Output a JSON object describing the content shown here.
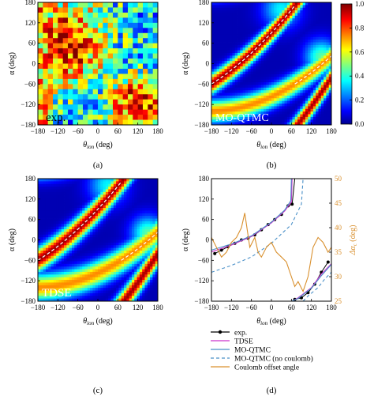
{
  "chart_data": [
    {
      "panel": "a",
      "type": "heatmap",
      "caption": "(a)",
      "label": "exp.",
      "xlabel_main": "θ",
      "xlabel_sub": "ion",
      "xlabel_unit": "(deg)",
      "ylabel": "α (deg)",
      "xlim": [
        -180,
        180
      ],
      "ylim": [
        -180,
        180
      ],
      "xticks": [
        "−180",
        "−120",
        "−60",
        "0",
        "60",
        "120",
        "180"
      ],
      "yticks": [
        "−180",
        "−120",
        "−60",
        "0",
        "60",
        "120",
        "180"
      ],
      "description": "noisy experimental map: high values upper-left and lower-right, low values along center"
    },
    {
      "panel": "b",
      "type": "heatmap",
      "caption": "(b)",
      "label": "MO-QTMC",
      "xlabel_main": "θ",
      "xlabel_sub": "ion",
      "xlabel_unit": "(deg)",
      "ylabel": "α (deg)",
      "xlim": [
        -180,
        180
      ],
      "ylim": [
        -180,
        180
      ],
      "xticks": [
        "−180",
        "−120",
        "−60",
        "0",
        "60",
        "120",
        "180"
      ],
      "yticks": [
        "−180",
        "−120",
        "−60",
        "0",
        "60",
        "120",
        "180"
      ],
      "colorbar": {
        "min": 0.0,
        "max": 1.0,
        "ticks": [
          "0.0",
          "0.2",
          "0.4",
          "0.6",
          "0.8",
          "1.0"
        ]
      }
    },
    {
      "panel": "c",
      "type": "heatmap",
      "caption": "(c)",
      "label": "TDSE",
      "xlabel_main": "θ",
      "xlabel_sub": "ion",
      "xlabel_unit": "(deg)",
      "ylabel": "α (deg)",
      "xlim": [
        -180,
        180
      ],
      "ylim": [
        -180,
        180
      ],
      "xticks": [
        "−180",
        "−120",
        "−60",
        "0",
        "60",
        "120",
        "180"
      ],
      "yticks": [
        "−180",
        "−120",
        "−60",
        "0",
        "60",
        "120",
        "180"
      ]
    },
    {
      "panel": "d",
      "type": "line",
      "caption": "(d)",
      "xlabel_main": "θ",
      "xlabel_sub": "ion",
      "xlabel_unit": "(deg)",
      "ylabel": "α (deg)",
      "ylabel_right": "Δα",
      "ylabel_right_sub": "c",
      "ylabel_right_unit": "(deg)",
      "xlim": [
        -180,
        180
      ],
      "ylim": [
        -180,
        180
      ],
      "ylim_right": [
        25,
        50
      ],
      "xticks": [
        "−180",
        "−120",
        "−60",
        "0",
        "60",
        "120",
        "180"
      ],
      "yticks": [
        "−180",
        "−120",
        "−60",
        "0",
        "60",
        "120",
        "180"
      ],
      "yticks_right": [
        "25",
        "30",
        "35",
        "40",
        "45",
        "50"
      ],
      "series": [
        {
          "name": "exp.",
          "color": "#000000",
          "style": "solid-markers",
          "x": [
            -170,
            -150,
            -130,
            -110,
            -90,
            -70,
            -50,
            -30,
            -10,
            10,
            30,
            50,
            62,
            70,
            90,
            110,
            130,
            150,
            170
          ],
          "y": [
            -40,
            -30,
            -20,
            -10,
            0,
            5,
            15,
            30,
            45,
            60,
            75,
            100,
            105,
            -175,
            -170,
            -155,
            -130,
            -95,
            -65
          ]
        },
        {
          "name": "TDSE",
          "color": "#cc33cc",
          "style": "solid",
          "x": [
            -180,
            -120,
            -60,
            0,
            40,
            60,
            62,
            80,
            120,
            150,
            180
          ],
          "y": [
            -35,
            -15,
            10,
            50,
            85,
            112,
            -180,
            -170,
            -140,
            -100,
            -70
          ]
        },
        {
          "name": "MO-QTMC",
          "color": "#4a90c8",
          "style": "solid",
          "x": [
            -180,
            -120,
            -60,
            0,
            40,
            58,
            60,
            80,
            120,
            150,
            180
          ],
          "y": [
            -30,
            -12,
            12,
            52,
            88,
            115,
            -180,
            -172,
            -142,
            -105,
            -72
          ]
        },
        {
          "name": "MO-QTMC (no coulomb)",
          "color": "#4a90c8",
          "style": "dashed",
          "x": [
            -180,
            -120,
            -60,
            0,
            60,
            90,
            95,
            110,
            140,
            160,
            180
          ],
          "y": [
            -95,
            -75,
            -50,
            -10,
            45,
            105,
            -180,
            -165,
            -140,
            -115,
            -95
          ]
        },
        {
          "name": "Coulomb offset angle",
          "color": "#d9902e",
          "style": "solid",
          "axis": "right",
          "x": [
            -180,
            -165,
            -150,
            -135,
            -120,
            -105,
            -90,
            -80,
            -65,
            -50,
            -40,
            -30,
            -15,
            0,
            15,
            30,
            45,
            60,
            70,
            80,
            95,
            110,
            125,
            140,
            155,
            170,
            180
          ],
          "y": [
            38,
            36,
            34,
            35,
            37,
            38,
            40,
            43,
            36,
            38,
            35,
            34,
            36,
            37,
            35,
            34,
            33,
            30,
            28,
            29,
            27,
            30,
            36,
            38,
            37,
            35,
            36
          ]
        }
      ]
    }
  ]
}
